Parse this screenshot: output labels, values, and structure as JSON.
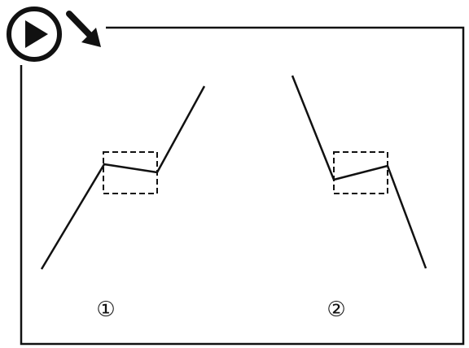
{
  "diagram": {
    "panels": [
      {
        "label": "①"
      },
      {
        "label": "②"
      }
    ]
  },
  "icons": {
    "play": "play-circle-icon",
    "arrow": "arrow-down-right-icon"
  },
  "colors": {
    "stroke": "#111111",
    "background": "#ffffff"
  }
}
